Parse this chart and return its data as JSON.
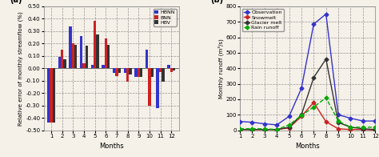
{
  "bar": {
    "months": [
      1,
      2,
      3,
      4,
      5,
      6,
      7,
      8,
      9,
      10,
      11,
      12
    ],
    "HBNN": [
      -0.44,
      0.09,
      0.34,
      0.26,
      0.03,
      0.03,
      -0.04,
      -0.04,
      -0.07,
      0.15,
      -0.32,
      0.03
    ],
    "BNN": [
      -0.44,
      0.15,
      0.2,
      0.04,
      0.38,
      0.24,
      -0.06,
      -0.11,
      -0.07,
      -0.3,
      -0.03,
      -0.03
    ],
    "HBV": [
      -0.44,
      0.07,
      0.19,
      0.18,
      0.27,
      0.19,
      -0.04,
      -0.05,
      -0.07,
      -0.07,
      -0.11,
      -0.02
    ],
    "colors": {
      "HBNN": "#3333cc",
      "BNN": "#cc2222",
      "HBV": "#333333"
    },
    "ylabel": "Relative error of monthly streamflow (%)",
    "xlabel": "Months",
    "ylim": [
      -0.5,
      0.5
    ],
    "yticks": [
      -0.5,
      -0.4,
      -0.3,
      -0.2,
      -0.1,
      0.0,
      0.1,
      0.2,
      0.3,
      0.4,
      0.5
    ]
  },
  "line": {
    "months": [
      1,
      2,
      3,
      4,
      5,
      6,
      7,
      8,
      9,
      10,
      11,
      12
    ],
    "Observation": [
      57,
      52,
      42,
      35,
      90,
      270,
      685,
      750,
      100,
      78,
      60,
      60
    ],
    "Snowmelt": [
      5,
      5,
      5,
      5,
      15,
      90,
      180,
      55,
      10,
      5,
      5,
      2
    ],
    "GlacierMelt": [
      5,
      5,
      5,
      5,
      20,
      100,
      340,
      460,
      50,
      20,
      10,
      5
    ],
    "RainRunoff": [
      10,
      10,
      10,
      5,
      35,
      95,
      150,
      210,
      60,
      20,
      20,
      20
    ],
    "colors": {
      "Observation": "#3333cc",
      "Snowmelt": "#cc2222",
      "GlacierMelt": "#333333",
      "RainRunoff": "#00aa00"
    },
    "ylabel": "Monthly runoff (m³/s)",
    "xlabel": "Months",
    "ylim": [
      0,
      800
    ],
    "yticks": [
      0,
      100,
      200,
      300,
      400,
      500,
      600,
      700,
      800
    ]
  },
  "bg_color": "#f5f0e8"
}
